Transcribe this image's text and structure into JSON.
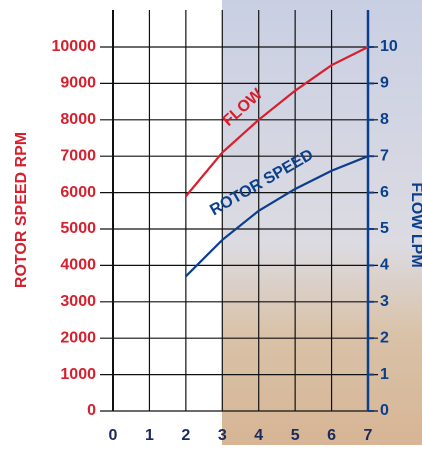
{
  "chart_data": {
    "type": "line",
    "x": [
      2,
      3,
      4,
      5,
      6,
      7
    ],
    "xlim": [
      0,
      7
    ],
    "xticks": [
      0,
      1,
      2,
      3,
      4,
      5,
      6,
      7
    ],
    "ylabel": "ROTOR SPEED RPM",
    "ylim": [
      0,
      10000
    ],
    "yticks": [
      0,
      1000,
      2000,
      3000,
      4000,
      5000,
      6000,
      7000,
      8000,
      9000,
      10000
    ],
    "y2label": "FLOW LPM",
    "y2lim": [
      0,
      10
    ],
    "y2ticks": [
      0,
      1,
      2,
      3,
      4,
      5,
      6,
      7,
      8,
      9,
      10
    ],
    "grid": true,
    "series": [
      {
        "name": "FLOW",
        "color": "#d7202e",
        "axis": "y2",
        "values": [
          5.9,
          7.1,
          8.0,
          8.8,
          9.5,
          10
        ]
      },
      {
        "name": "ROTOR SPEED",
        "color": "#0b3f8c",
        "values": [
          3700,
          4700,
          5500,
          6100,
          6600,
          7000
        ]
      }
    ]
  }
}
